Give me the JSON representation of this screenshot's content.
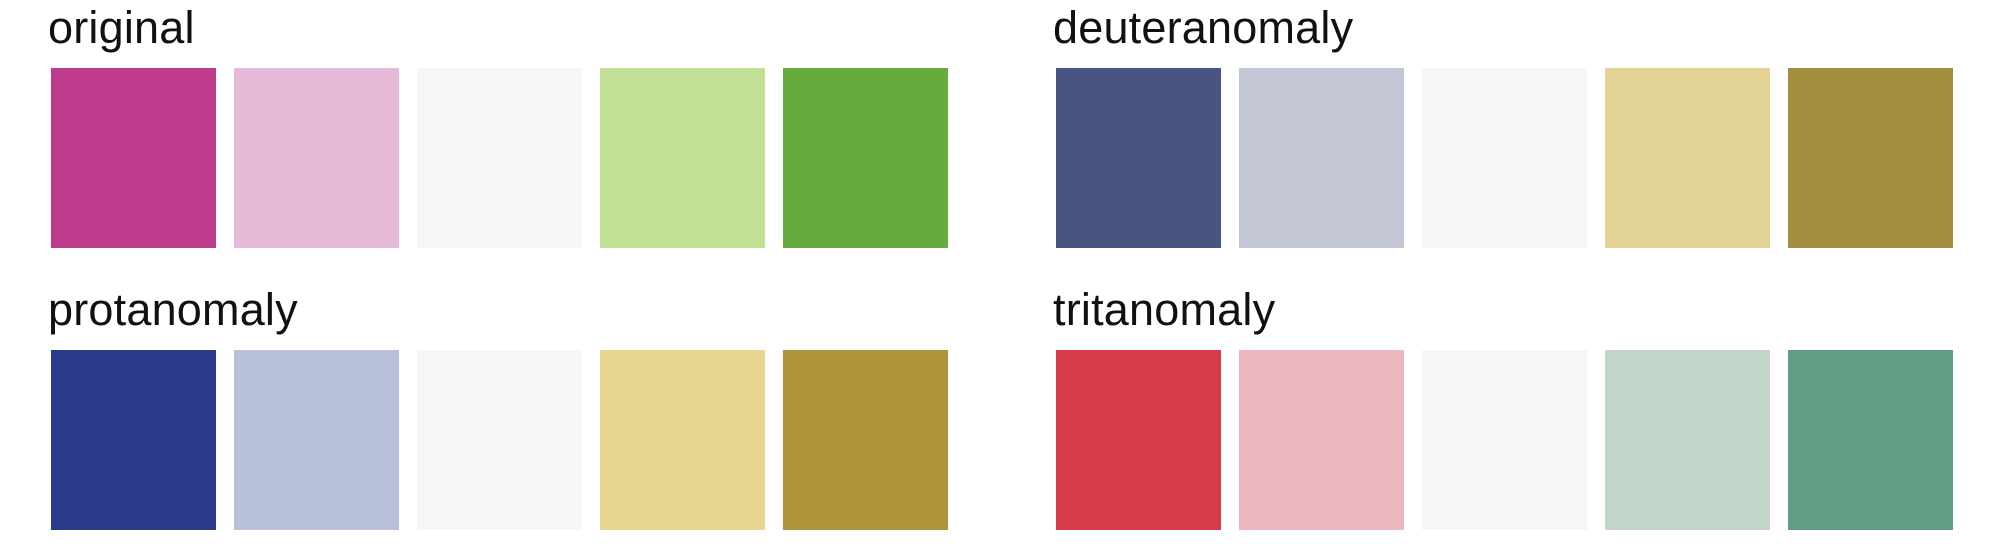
{
  "panels": {
    "original": {
      "title": "original",
      "colors": [
        "#BE3A8A",
        "#E7B9D8",
        "#F6F6F6",
        "#C2E093",
        "#67AB3E"
      ]
    },
    "deuteranomaly": {
      "title": "deuteranomaly",
      "colors": [
        "#495580",
        "#C4C8D6",
        "#F6F6F6",
        "#E2D293",
        "#A38D3E"
      ]
    },
    "protanomaly": {
      "title": "protanomaly",
      "colors": [
        "#2A3A8A",
        "#B8BFD9",
        "#F6F6F6",
        "#E8D58F",
        "#B0943A"
      ]
    },
    "tritanomaly": {
      "title": "tritanomaly",
      "colors": [
        "#D73B47",
        "#ECB7BF",
        "#F6F6F6",
        "#C1D6C8",
        "#629E83"
      ]
    }
  }
}
